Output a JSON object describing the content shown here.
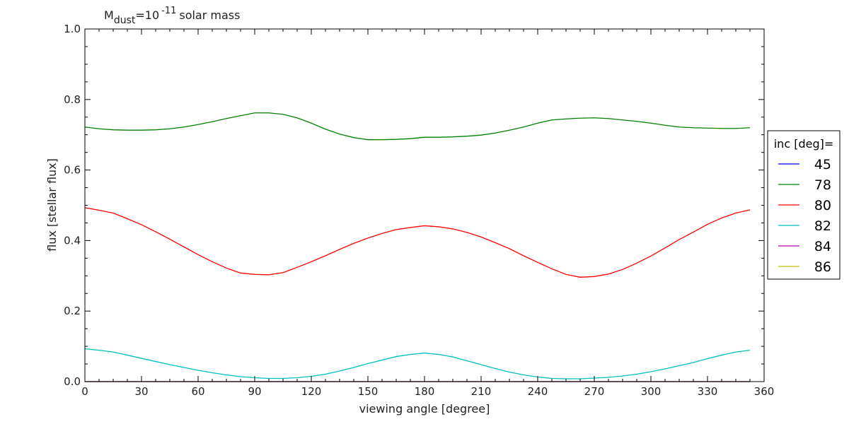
{
  "chart_data": {
    "type": "line",
    "title": {
      "m": "M",
      "sub": "dust",
      "eq": "=10",
      "exp": "-11",
      "rest": "solar mass"
    },
    "xlabel": "viewing angle [degree]",
    "ylabel": "flux [stellar flux]",
    "xlim": [
      0,
      360
    ],
    "ylim": [
      0,
      1.0
    ],
    "xticks": [
      0,
      30,
      60,
      90,
      120,
      150,
      180,
      210,
      240,
      270,
      300,
      330,
      360
    ],
    "yticks": [
      0.0,
      0.2,
      0.4,
      0.6,
      0.8,
      1.0
    ],
    "ytick_labels": [
      "0.0",
      "0.2",
      "0.4",
      "0.6",
      "0.8",
      "1.0"
    ],
    "grid": false,
    "legend_title": "inc [deg]=",
    "legend_position": "outside right",
    "x": [
      0,
      7.5,
      15,
      22.5,
      30,
      37.5,
      45,
      52.5,
      60,
      67.5,
      75,
      82.5,
      90,
      97.5,
      105,
      112.5,
      120,
      127.5,
      135,
      142.5,
      150,
      157.5,
      165,
      172.5,
      180,
      187.5,
      195,
      202.5,
      210,
      217.5,
      225,
      232.5,
      240,
      247.5,
      255,
      262.5,
      270,
      277.5,
      285,
      292.5,
      300,
      307.5,
      315,
      322.5,
      330,
      337.5,
      345,
      352.5
    ],
    "series": [
      {
        "name": "45",
        "color": "#0000ff",
        "values": [
          0,
          0,
          0,
          0,
          0,
          0,
          0,
          0,
          0,
          0,
          0,
          0,
          0,
          0,
          0,
          0,
          0,
          0,
          0,
          0,
          0,
          0,
          0,
          0,
          0,
          0,
          0,
          0,
          0,
          0,
          0,
          0,
          0,
          0,
          0,
          0,
          0,
          0,
          0,
          0,
          0,
          0,
          0,
          0,
          0,
          0,
          0,
          0
        ]
      },
      {
        "name": "78",
        "color": "#008000",
        "values": [
          0.722,
          0.717,
          0.714,
          0.713,
          0.713,
          0.714,
          0.717,
          0.722,
          0.729,
          0.737,
          0.746,
          0.754,
          0.762,
          0.762,
          0.758,
          0.748,
          0.733,
          0.716,
          0.702,
          0.692,
          0.686,
          0.686,
          0.687,
          0.689,
          0.693,
          0.693,
          0.694,
          0.696,
          0.699,
          0.705,
          0.713,
          0.722,
          0.733,
          0.742,
          0.745,
          0.747,
          0.748,
          0.746,
          0.742,
          0.738,
          0.733,
          0.727,
          0.722,
          0.72,
          0.719,
          0.718,
          0.718,
          0.72
        ]
      },
      {
        "name": "80",
        "color": "#ff0000",
        "values": [
          0.493,
          0.486,
          0.478,
          0.462,
          0.445,
          0.425,
          0.404,
          0.382,
          0.36,
          0.34,
          0.322,
          0.308,
          0.304,
          0.303,
          0.309,
          0.324,
          0.34,
          0.357,
          0.375,
          0.392,
          0.407,
          0.42,
          0.431,
          0.437,
          0.442,
          0.439,
          0.433,
          0.423,
          0.41,
          0.394,
          0.377,
          0.357,
          0.338,
          0.32,
          0.304,
          0.296,
          0.298,
          0.305,
          0.318,
          0.336,
          0.356,
          0.379,
          0.403,
          0.424,
          0.446,
          0.464,
          0.478,
          0.487
        ]
      },
      {
        "name": "82",
        "color": "#00bfbf",
        "values": [
          0.093,
          0.089,
          0.084,
          0.075,
          0.066,
          0.057,
          0.048,
          0.04,
          0.032,
          0.025,
          0.019,
          0.014,
          0.011,
          0.009,
          0.009,
          0.011,
          0.015,
          0.021,
          0.03,
          0.04,
          0.051,
          0.061,
          0.071,
          0.077,
          0.081,
          0.077,
          0.07,
          0.059,
          0.048,
          0.037,
          0.027,
          0.019,
          0.013,
          0.009,
          0.008,
          0.008,
          0.01,
          0.012,
          0.016,
          0.021,
          0.028,
          0.036,
          0.045,
          0.054,
          0.065,
          0.075,
          0.084,
          0.089
        ]
      },
      {
        "name": "84",
        "color": "#bf00bf",
        "values": [
          0,
          0,
          0,
          0,
          0,
          0,
          0,
          0,
          0,
          0,
          0,
          0,
          0,
          0,
          0,
          0,
          0,
          0,
          0,
          0,
          0,
          0,
          0,
          0,
          0,
          0,
          0,
          0,
          0,
          0,
          0,
          0,
          0,
          0,
          0,
          0,
          0,
          0,
          0,
          0,
          0,
          0,
          0,
          0,
          0,
          0,
          0,
          0
        ]
      },
      {
        "name": "86",
        "color": "#bfbf00",
        "values": [
          0,
          0,
          0,
          0,
          0,
          0,
          0,
          0,
          0,
          0,
          0,
          0,
          0,
          0,
          0,
          0,
          0,
          0,
          0,
          0,
          0,
          0,
          0,
          0,
          0,
          0,
          0,
          0,
          0,
          0,
          0,
          0,
          0,
          0,
          0,
          0,
          0,
          0,
          0,
          0,
          0,
          0,
          0,
          0,
          0,
          0,
          0,
          0
        ]
      }
    ]
  }
}
